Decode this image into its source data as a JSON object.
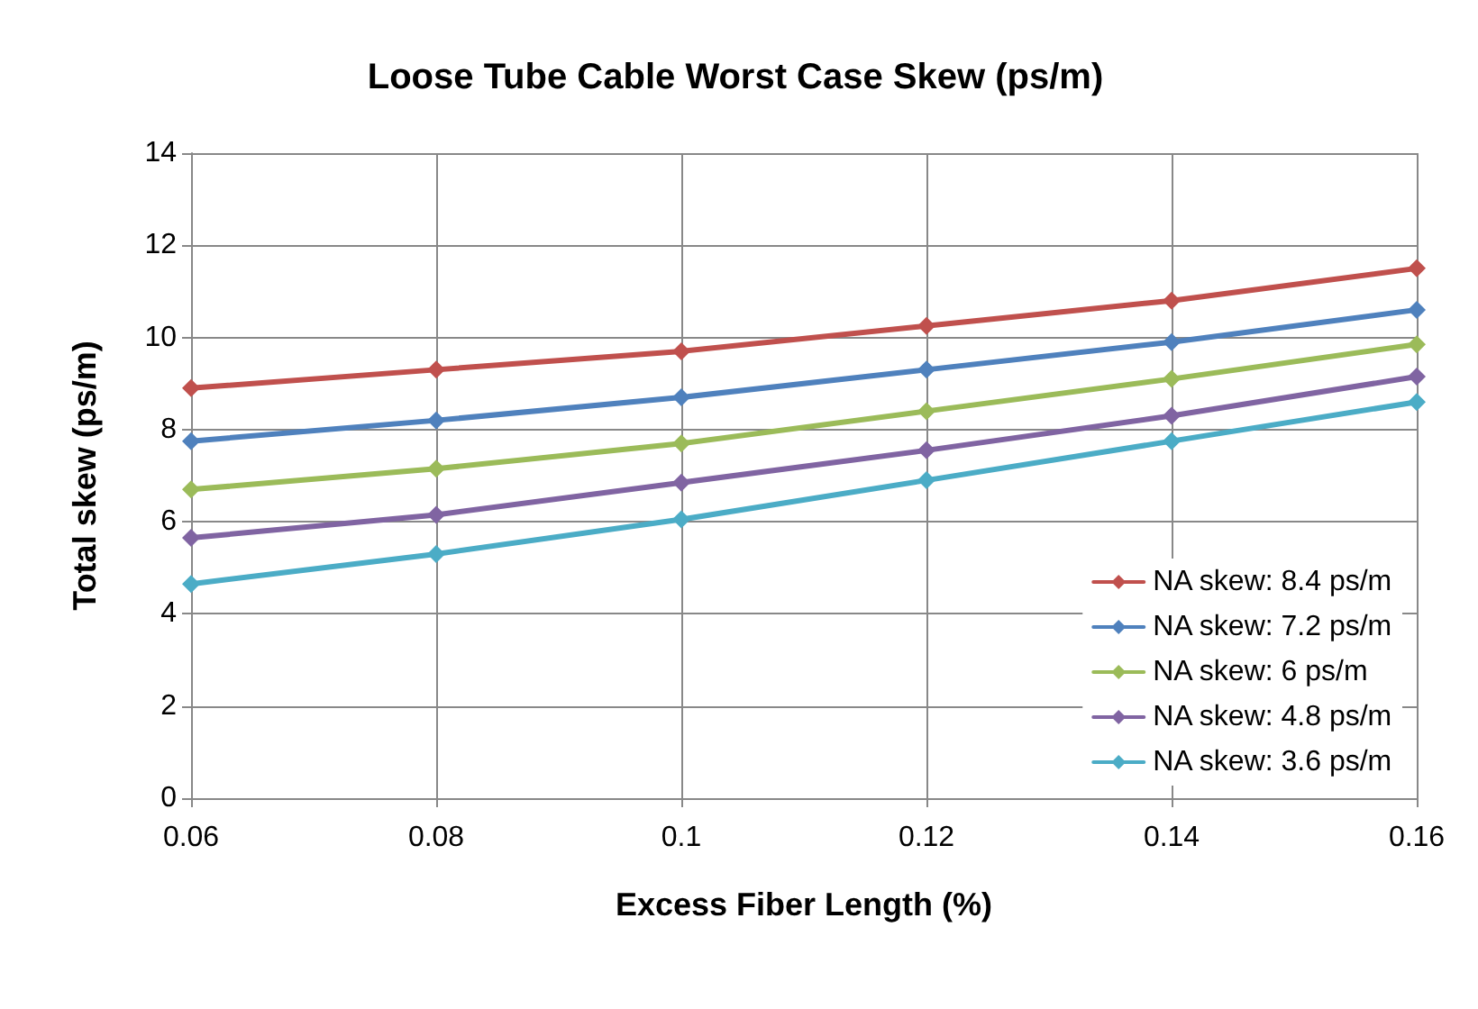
{
  "chart_data": {
    "type": "line",
    "title": "Loose Tube Cable Worst Case Skew (ps/m)",
    "xlabel": "Excess Fiber Length (%)",
    "ylabel": "Total skew (ps/m)",
    "x": [
      0.06,
      0.08,
      0.1,
      0.12,
      0.14,
      0.16
    ],
    "series": [
      {
        "name": "NA skew: 8.4 ps/m",
        "color": "#c0504d",
        "values": [
          8.9,
          9.3,
          9.7,
          10.25,
          10.8,
          11.5
        ]
      },
      {
        "name": "NA skew: 7.2 ps/m",
        "color": "#4f81bd",
        "values": [
          7.75,
          8.2,
          8.7,
          9.3,
          9.9,
          10.6
        ]
      },
      {
        "name": "NA skew: 6 ps/m",
        "color": "#9bbb59",
        "values": [
          6.7,
          7.15,
          7.7,
          8.4,
          9.1,
          9.85
        ]
      },
      {
        "name": "NA skew: 4.8 ps/m",
        "color": "#8064a2",
        "values": [
          5.65,
          6.15,
          6.85,
          7.55,
          8.3,
          9.15
        ]
      },
      {
        "name": "NA skew: 3.6 ps/m",
        "color": "#4bacc6",
        "values": [
          4.65,
          5.3,
          6.05,
          6.9,
          7.75,
          8.6
        ]
      }
    ],
    "xlim": [
      0.06,
      0.16
    ],
    "xticks": [
      0.06,
      0.08,
      0.1,
      0.12,
      0.14,
      0.16
    ],
    "ylim": [
      0,
      14
    ],
    "yticks": [
      0,
      2,
      4,
      6,
      8,
      10,
      12,
      14
    ],
    "grid": true,
    "legend": "bottom right",
    "marker": "diamond",
    "line_style": "solid"
  }
}
